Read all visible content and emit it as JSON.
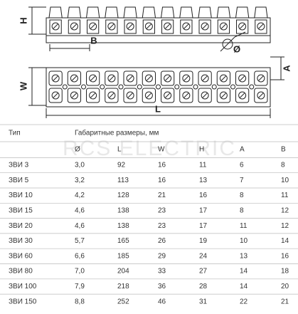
{
  "drawing": {
    "labels": {
      "h": "H",
      "b": "B",
      "diameter": "Ø",
      "w": "W",
      "a": "A",
      "l": "L"
    }
  },
  "watermark": "RCS ELECTRIC",
  "table": {
    "header": [
      "Тип",
      "Габаритные размеры, мм"
    ],
    "columns": [
      "Ø",
      "L",
      "W",
      "H",
      "A",
      "B"
    ],
    "rows": [
      [
        "ЗВИ 3",
        "3,0",
        "92",
        "16",
        "11",
        "6",
        "8"
      ],
      [
        "ЗВИ 5",
        "3,2",
        "113",
        "16",
        "13",
        "7",
        "10"
      ],
      [
        "ЗВИ 10",
        "4,2",
        "128",
        "21",
        "16",
        "8",
        "11"
      ],
      [
        "ЗВИ 15",
        "4,6",
        "138",
        "23",
        "17",
        "8",
        "12"
      ],
      [
        "ЗВИ 20",
        "4,6",
        "138",
        "23",
        "17",
        "11",
        "12"
      ],
      [
        "ЗВИ 30",
        "5,7",
        "165",
        "26",
        "19",
        "10",
        "14"
      ],
      [
        "ЗВИ 60",
        "6,6",
        "185",
        "29",
        "24",
        "13",
        "16"
      ],
      [
        "ЗВИ 80",
        "7,0",
        "204",
        "33",
        "27",
        "14",
        "18"
      ],
      [
        "ЗВИ 100",
        "7,9",
        "218",
        "36",
        "28",
        "14",
        "20"
      ],
      [
        "ЗВИ 150",
        "8,8",
        "252",
        "46",
        "31",
        "22",
        "21"
      ]
    ]
  }
}
